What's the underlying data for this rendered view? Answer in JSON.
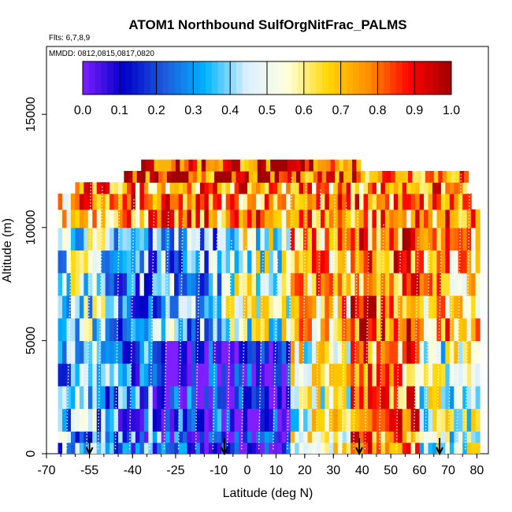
{
  "chart_data": {
    "type": "heatmap",
    "title": "ATOM1 Northbound SulfOrgNitFrac_PALMS",
    "subtitle_flights": "Flts: 6,7,8,9",
    "subtitle_dates": "MMDD: 0812,0815,0817,0820",
    "xlabel": "Latitude (deg N)",
    "ylabel": "Altitude (m)",
    "xlim": [
      -70,
      84
    ],
    "ylim": [
      0,
      18000
    ],
    "x_ticks": [
      -70,
      -55,
      -40,
      -25,
      -10,
      0,
      10,
      20,
      30,
      40,
      50,
      60,
      70,
      80
    ],
    "x_tick_labels": [
      "-70",
      "-55",
      "-40",
      "-25",
      "-10",
      "0",
      "10",
      "20",
      "30",
      "40",
      "50",
      "60",
      "70",
      "80"
    ],
    "y_ticks": [
      0,
      5000,
      10000,
      15000
    ],
    "y_tick_labels": [
      "0",
      "5000",
      "10000",
      "15000"
    ],
    "colorbar": {
      "range": [
        0,
        1
      ],
      "ticks": [
        "0.0",
        "0.1",
        "0.2",
        "0.3",
        "0.4",
        "0.5",
        "0.6",
        "0.7",
        "0.8",
        "0.9",
        "1.0"
      ],
      "colors": [
        "#7f1fff",
        "#0000c8",
        "#1e5adc",
        "#00b4ff",
        "#dcf0ff",
        "#ffffdc",
        "#ffd700",
        "#ff8c00",
        "#ff0000",
        "#a00000"
      ]
    },
    "grid": false,
    "altitude_bands_m": [
      [
        0,
        500
      ],
      [
        500,
        1000
      ],
      [
        1000,
        2000
      ],
      [
        2000,
        3000
      ],
      [
        3000,
        4000
      ],
      [
        4000,
        5000
      ],
      [
        5000,
        6000
      ],
      [
        6000,
        7000
      ],
      [
        7000,
        8000
      ],
      [
        8000,
        9000
      ],
      [
        9000,
        10000
      ],
      [
        10000,
        10800
      ],
      [
        10800,
        11500
      ],
      [
        11500,
        12000
      ],
      [
        12000,
        12500
      ],
      [
        12500,
        13000
      ]
    ],
    "cell_values": [
      {
        "lat_range": [
          -66,
          -50
        ],
        "alt_band": [
          0,
          5000
        ],
        "value": 0.35
      },
      {
        "lat_range": [
          -66,
          -50
        ],
        "alt_band": [
          5000,
          10000
        ],
        "value": 0.45
      },
      {
        "lat_range": [
          -50,
          -30
        ],
        "alt_band": [
          0,
          5000
        ],
        "value": 0.25
      },
      {
        "lat_range": [
          -50,
          -30
        ],
        "alt_band": [
          5000,
          10000
        ],
        "value": 0.3
      },
      {
        "lat_range": [
          -30,
          -10
        ],
        "alt_band": [
          0,
          5000
        ],
        "value": 0.15
      },
      {
        "lat_range": [
          -30,
          -10
        ],
        "alt_band": [
          5000,
          10000
        ],
        "value": 0.35
      },
      {
        "lat_range": [
          -10,
          15
        ],
        "alt_band": [
          0,
          5000
        ],
        "value": 0.08
      },
      {
        "lat_range": [
          -10,
          15
        ],
        "alt_band": [
          5000,
          10000
        ],
        "value": 0.5
      },
      {
        "lat_range": [
          15,
          35
        ],
        "alt_band": [
          0,
          5000
        ],
        "value": 0.55
      },
      {
        "lat_range": [
          15,
          35
        ],
        "alt_band": [
          5000,
          10000
        ],
        "value": 0.7
      },
      {
        "lat_range": [
          35,
          60
        ],
        "alt_band": [
          0,
          5000
        ],
        "value": 0.75
      },
      {
        "lat_range": [
          35,
          60
        ],
        "alt_band": [
          5000,
          10000
        ],
        "value": 0.8
      },
      {
        "lat_range": [
          60,
          80
        ],
        "alt_band": [
          0,
          5000
        ],
        "value": 0.5
      },
      {
        "lat_range": [
          60,
          80
        ],
        "alt_band": [
          5000,
          10000
        ],
        "value": 0.7
      },
      {
        "lat_range": [
          -45,
          40
        ],
        "alt_band": [
          12000,
          13000
        ],
        "value": 0.85
      },
      {
        "lat_range": [
          -60,
          75
        ],
        "alt_band": [
          10000,
          12000
        ],
        "value": 0.75
      }
    ],
    "flight_track_color": "#ffffff",
    "arrow_markers_lat": [
      -55,
      -8,
      39,
      67
    ]
  }
}
